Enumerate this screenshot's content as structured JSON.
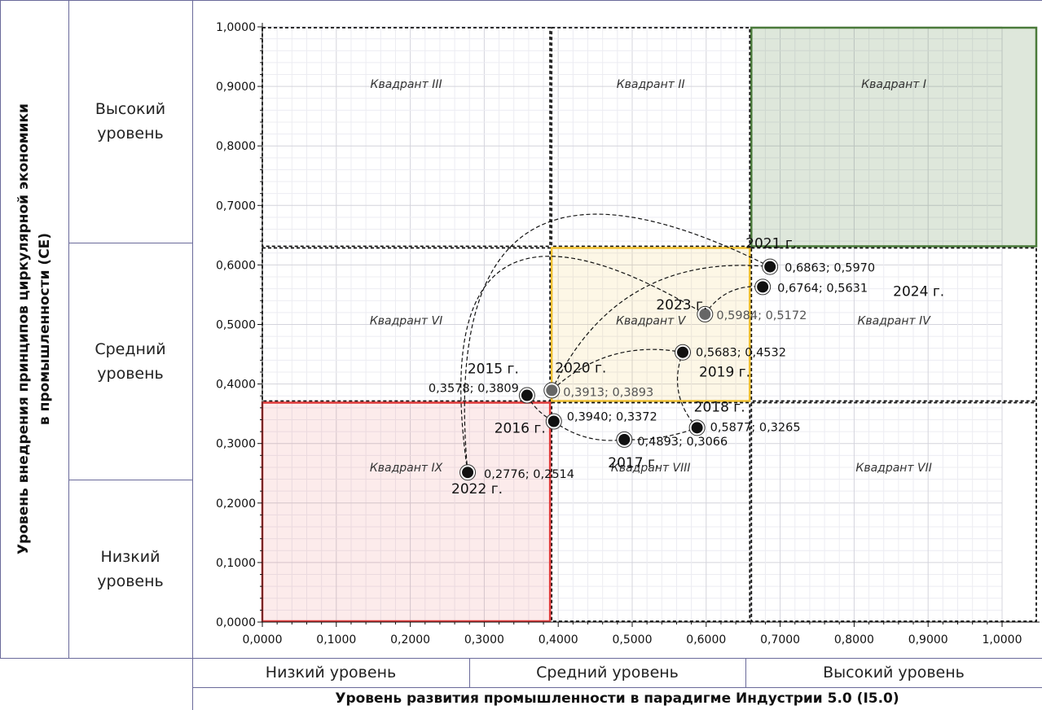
{
  "y_axis_title": "Уровень внедрения принципов циркулярной экономики\nв промышленности (CE)",
  "x_axis_title": "Уровень развития промышленности в парадигме Индустрии 5.0 (I5.0)",
  "y_levels": [
    "Высокий\nуровень",
    "Средний\nуровень",
    "Низкий\nуровень"
  ],
  "x_levels": [
    "Низкий уровень",
    "Средний уровень",
    "Высокий уровень"
  ],
  "colors": {
    "quadrant_I": "#4a7a3a",
    "quadrant_V": "#f0c030",
    "quadrant_IX": "#e03a3a",
    "frame": "#6a6a9a",
    "point": "#111111"
  },
  "chart_data": {
    "type": "scatter",
    "xlim": [
      0,
      1
    ],
    "ylim": [
      0,
      1
    ],
    "grid": true,
    "x_ticks": [
      "0,0000",
      "0,1000",
      "0,2000",
      "0,3000",
      "0,4000",
      "0,5000",
      "0,6000",
      "0,7000",
      "0,8000",
      "0,9000",
      "1,0000"
    ],
    "y_ticks": [
      "0,0000",
      "0,1000",
      "0,2000",
      "0,3000",
      "0,4000",
      "0,5000",
      "0,6000",
      "0,7000",
      "0,8000",
      "0,9000",
      "1,0000"
    ],
    "quadrants": [
      {
        "label": "Квадрант I",
        "x": [
          0.66,
          1.0
        ],
        "y": [
          0.63,
          1.0
        ],
        "style": "green"
      },
      {
        "label": "Квадрант II",
        "x": [
          0.39,
          0.66
        ],
        "y": [
          0.63,
          1.0
        ],
        "style": "dashed"
      },
      {
        "label": "Квадрант III",
        "x": [
          0.0,
          0.39
        ],
        "y": [
          0.63,
          1.0
        ],
        "style": "dashed"
      },
      {
        "label": "Квадрант IV",
        "x": [
          0.66,
          1.0
        ],
        "y": [
          0.37,
          0.63
        ],
        "style": "dashed"
      },
      {
        "label": "Квадрант V",
        "x": [
          0.39,
          0.66
        ],
        "y": [
          0.37,
          0.63
        ],
        "style": "yellow"
      },
      {
        "label": "Квадрант VI",
        "x": [
          0.0,
          0.39
        ],
        "y": [
          0.37,
          0.63
        ],
        "style": "dashed"
      },
      {
        "label": "Квадрант VII",
        "x": [
          0.66,
          1.0
        ],
        "y": [
          0.0,
          0.37
        ],
        "style": "dashed"
      },
      {
        "label": "Квадрант VIII",
        "x": [
          0.39,
          0.66
        ],
        "y": [
          0.0,
          0.37
        ],
        "style": "dashed"
      },
      {
        "label": "Квадрант IX",
        "x": [
          0.0,
          0.39
        ],
        "y": [
          0.0,
          0.37
        ],
        "style": "red"
      }
    ],
    "points": [
      {
        "year": "2015 г.",
        "x": 0.3578,
        "y": 0.3809,
        "label": "0,3578; 0,3809"
      },
      {
        "year": "2016 г.",
        "x": 0.394,
        "y": 0.3372,
        "label": "0,3940; 0,3372"
      },
      {
        "year": "2017 г.",
        "x": 0.4893,
        "y": 0.3066,
        "label": "0,4893; 0,3066"
      },
      {
        "year": "2018 г.",
        "x": 0.5877,
        "y": 0.3265,
        "label": "0,5877; 0,3265"
      },
      {
        "year": "2019 г.",
        "x": 0.5683,
        "y": 0.4532,
        "label": "0,5683; 0,4532"
      },
      {
        "year": "2020 г.",
        "x": 0.3913,
        "y": 0.3893,
        "label": "0,3913; 0,3893"
      },
      {
        "year": "2021 г.",
        "x": 0.6863,
        "y": 0.597,
        "label": "0,6863; 0,5970"
      },
      {
        "year": "2022 г.",
        "x": 0.2776,
        "y": 0.2514,
        "label": "0,2776; 0,2514"
      },
      {
        "year": "2023 г.",
        "x": 0.5984,
        "y": 0.5172,
        "label": "0,5984; 0,5172"
      },
      {
        "year": "2024 г.",
        "x": 0.6764,
        "y": 0.5631,
        "label": "0,6764; 0,5631"
      }
    ]
  }
}
